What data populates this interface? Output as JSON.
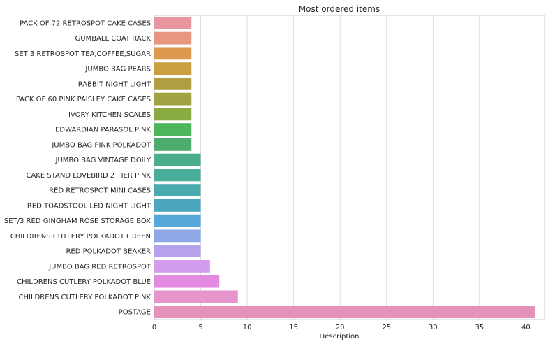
{
  "chart_data": {
    "type": "bar",
    "orientation": "horizontal",
    "title": "Most ordered items",
    "xlabel": "Description",
    "ylabel": "",
    "xlim": [
      0,
      42
    ],
    "xticks": [
      0,
      5,
      10,
      15,
      20,
      25,
      30,
      35,
      40
    ],
    "grid": true,
    "categories": [
      "PACK OF 72 RETROSPOT CAKE CASES",
      "GUMBALL COAT RACK",
      "SET 3 RETROSPOT TEA,COFFEE,SUGAR",
      "JUMBO BAG PEARS",
      "RABBIT NIGHT LIGHT",
      "PACK OF 60 PINK PAISLEY CAKE CASES",
      "IVORY KITCHEN SCALES",
      "EDWARDIAN PARASOL PINK",
      "JUMBO BAG PINK POLKADOT",
      "JUMBO BAG VINTAGE DOILY",
      "CAKE STAND LOVEBIRD 2 TIER PINK",
      "RED RETROSPOT MINI CASES",
      "RED TOADSTOOL LED NIGHT LIGHT",
      "SET/3 RED GINGHAM ROSE STORAGE BOX",
      "CHILDRENS CUTLERY POLKADOT GREEN",
      "RED POLKADOT BEAKER",
      "JUMBO BAG RED RETROSPOT",
      "CHILDRENS CUTLERY POLKADOT BLUE",
      "CHILDRENS CUTLERY POLKADOT PINK",
      "POSTAGE"
    ],
    "values": [
      4,
      4,
      4,
      4,
      4,
      4,
      4,
      4,
      4,
      5,
      5,
      5,
      5,
      5,
      5,
      5,
      6,
      7,
      9,
      41
    ],
    "colors": [
      "#e8969f",
      "#e8967f",
      "#dd9a4f",
      "#c99f42",
      "#b09f42",
      "#a1a342",
      "#8aab42",
      "#4eb55a",
      "#4eab6e",
      "#4aad8c",
      "#4aad9c",
      "#49abad",
      "#4aa5bd",
      "#55a8d9",
      "#8ea9e6",
      "#b5a2ea",
      "#d39cec",
      "#e38ae1",
      "#e795cd",
      "#e592b9"
    ],
    "text_color": "#262626",
    "grid_color": "#dcdcdc",
    "spine_color": "#cccccc"
  }
}
